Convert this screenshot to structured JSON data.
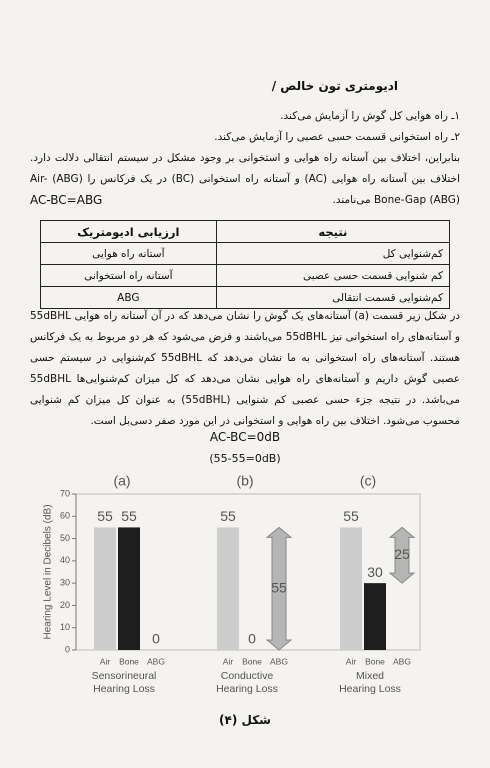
{
  "heading": "ادیومتری تون خالص /",
  "list": [
    "۱ـ راه هوایی کل گوش را آزمایش می‌کند.",
    "۲ـ راه استخوانی قسمت حسی عصبی را آزمایش می‌کند."
  ],
  "paragraphs": [
    "بنابراین، اختلاف بین آستانه راه هوایی و استخوانی بر وجود مشکل در سیستم انتقالی دلالت دارد. اختلاف بین آستانه راه هوایی (AC) و آستانه راه استخوانی (BC) در یک فرکانس را (ABG) Air-Bone-Gap (ABG) می‌نامند.",
    "در شکل زیر قسمت (a) آستانه‌های یک گوش را نشان می‌دهد که در آن آستانه راه هوایی 55dBHL و آستانه‌های راه استخوانی نیز 55dBHL می‌باشند و فرض می‌شود که هر دو مربوط به یک فرکانس هستند. آستانه‌های راه استخوانی به ما نشان می‌دهد که 55dBHL کم‌شنوایی در سیستم حسی عصبی گوش داریم و آستانه‌های راه هوایی نشان می‌دهد که کل میزان کم‌شنوایی‌ها 55dBHL می‌باشد. در نتیجه جزء حسی عصبی کم شنوایی (55dBHL) به عنوان کل میزان کم شنوایی محسوب می‌شود. اختلاف بین راه هوایی و استخوانی در این مورد صفر دسی‌بل است."
  ],
  "formula": "AC-BC=ABG",
  "table": {
    "header": [
      "نتیجه",
      "ارزیابی ادیومتریک"
    ],
    "rows": [
      [
        "کم‌شنوایی کل",
        "آستانه راه هوایی"
      ],
      [
        "کم شنوایی قسمت حسی عصبی",
        "آستانه راه استخوانی"
      ],
      [
        "کم‌شنوایی قسمت انتقالی",
        "ABG"
      ]
    ]
  },
  "equations": [
    "AC-BC=0dB",
    "(55-55=0dB)"
  ],
  "chart_data": [
    {
      "type": "bar",
      "title": "(a)",
      "subtitle": [
        "Sensorineural",
        "Hearing Loss"
      ],
      "y_label": "Hearing Level in Decibels (dB)",
      "categories": [
        "Air",
        "Bone",
        "ABG"
      ],
      "values": [
        55,
        55,
        0
      ],
      "colors": [
        "#cdcdcd",
        "#1e1e1e",
        "#b5b5b5"
      ],
      "ylim": [
        0,
        70
      ],
      "yticks": [
        0,
        10,
        20,
        30,
        40,
        50,
        60,
        70
      ]
    },
    {
      "type": "bar",
      "title": "(b)",
      "subtitle": [
        "Conductive",
        "Hearing Loss"
      ],
      "categories": [
        "Air",
        "Bone",
        "ABG"
      ],
      "values": [
        55,
        0,
        55
      ],
      "colors": [
        "#cdcdcd",
        "#1e1e1e",
        "#b5b5b5"
      ],
      "ylim": [
        0,
        70
      ]
    },
    {
      "type": "bar",
      "title": "(c)",
      "subtitle": [
        "Mixed",
        "Hearing Loss"
      ],
      "categories": [
        "Air",
        "Bone",
        "ABG"
      ],
      "values": [
        55,
        30,
        25
      ],
      "colors": [
        "#cdcdcd",
        "#1e1e1e",
        "#b5b5b5"
      ],
      "ylim": [
        0,
        70
      ]
    }
  ],
  "caption": "شکل (۴)"
}
